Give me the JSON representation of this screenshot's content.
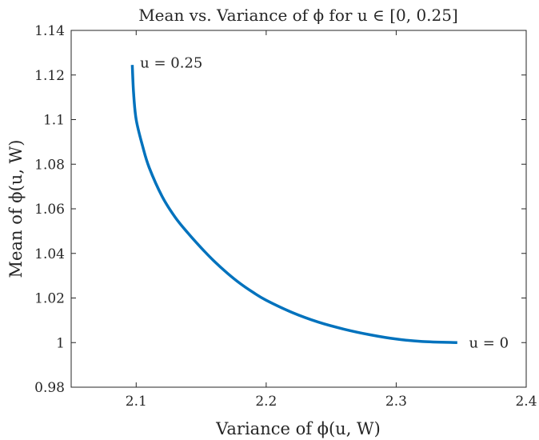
{
  "chart_data": {
    "type": "line",
    "title": "Mean vs. Variance of ϕ for u ∈ [0, 0.25]",
    "xlabel": "Variance of ϕ(u, W)",
    "ylabel": "Mean of ϕ(u, W)",
    "xlim": [
      2.05,
      2.4
    ],
    "ylim": [
      0.98,
      1.14
    ],
    "xticks": [
      2.1,
      2.2,
      2.3,
      2.4
    ],
    "xtick_labels": [
      "2.1",
      "2.2",
      "2.3",
      "2.4"
    ],
    "yticks": [
      0.98,
      1,
      1.02,
      1.04,
      1.06,
      1.08,
      1.1,
      1.12,
      1.14
    ],
    "ytick_labels": [
      "0.98",
      "1",
      "1.02",
      "1.04",
      "1.06",
      "1.08",
      "1.1",
      "1.12",
      "1.14"
    ],
    "grid": false,
    "series": [
      {
        "color": "#0072BD",
        "x": [
          2.097,
          2.098,
          2.1,
          2.105,
          2.11,
          2.12,
          2.13,
          2.14,
          2.15,
          2.16,
          2.17,
          2.18,
          2.19,
          2.2,
          2.22,
          2.24,
          2.26,
          2.28,
          2.3,
          2.32,
          2.347
        ],
        "y": [
          1.1245,
          1.112,
          1.1,
          1.088,
          1.0785,
          1.0655,
          1.0562,
          1.049,
          1.0425,
          1.0365,
          1.0312,
          1.0265,
          1.0225,
          1.019,
          1.0135,
          1.0092,
          1.006,
          1.0035,
          1.0016,
          1.0005,
          1.0
        ]
      }
    ],
    "annotations": [
      {
        "text": "u = 0.25",
        "x": 2.103,
        "y": 1.1255
      },
      {
        "text": "u = 0",
        "x": 2.356,
        "y": 1.0
      }
    ]
  }
}
